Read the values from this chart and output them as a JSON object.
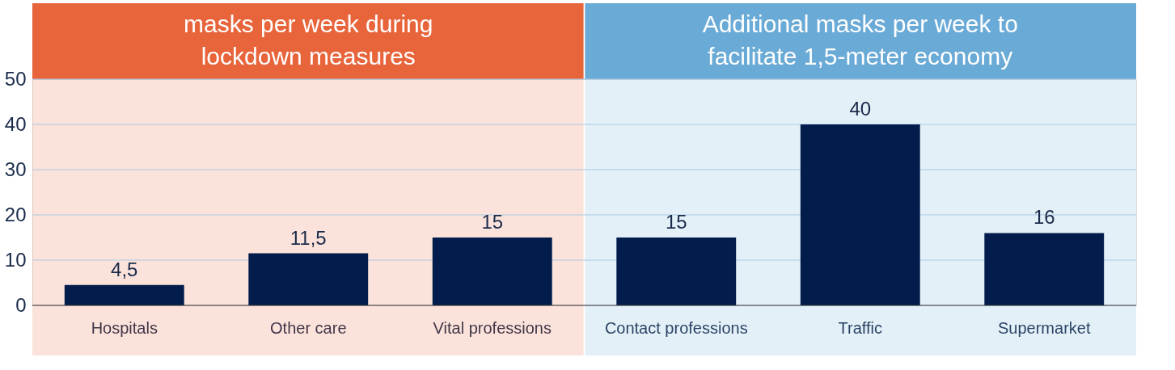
{
  "chart_data": {
    "type": "bar",
    "categories": [
      "Hospitals",
      "Other care",
      "Vital professions",
      "Contact professions",
      "Traffic",
      "Supermarket"
    ],
    "values": [
      4.5,
      11.5,
      15,
      15,
      40,
      16
    ],
    "value_labels": [
      "4,5",
      "11,5",
      "15",
      "15",
      "40",
      "16"
    ],
    "color": "#021c4b",
    "ylim": [
      0,
      50
    ],
    "yticks": [
      0,
      10,
      20,
      30,
      40,
      50
    ],
    "grid": "y",
    "bands": [
      {
        "axis": "x",
        "from": "Hospitals",
        "to": "Vital professions",
        "label": "masks per week during lockdown measures",
        "color": "#e8643a"
      },
      {
        "axis": "x",
        "from": "Contact professions",
        "to": "Supermarket",
        "label": "Additional masks per week to facilitate 1,5-meter economy",
        "color": "#6aaad6"
      }
    ]
  }
}
